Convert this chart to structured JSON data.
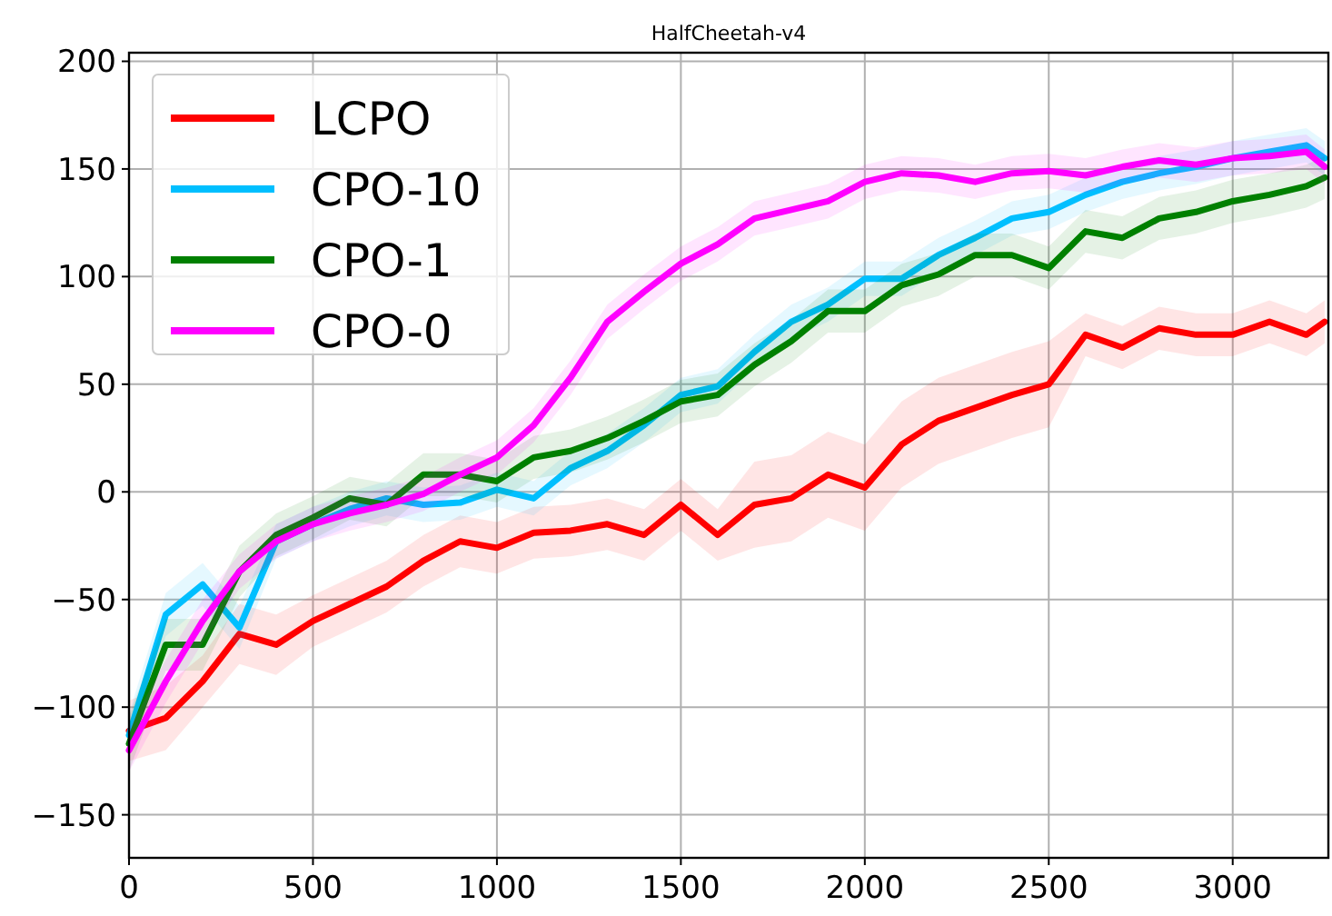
{
  "chart_data": {
    "type": "line",
    "title": "HalfCheetah-v4",
    "x": [
      0,
      100,
      200,
      300,
      400,
      500,
      600,
      700,
      800,
      900,
      1000,
      1100,
      1200,
      1300,
      1400,
      1500,
      1600,
      1700,
      1800,
      1900,
      2000,
      2100,
      2200,
      2300,
      2400,
      2500,
      2600,
      2700,
      2800,
      2900,
      3000,
      3100,
      3200,
      3250
    ],
    "xlim": [
      0,
      3260
    ],
    "xticks": [
      0,
      500,
      1000,
      1500,
      2000,
      2500,
      3000
    ],
    "ylim": [
      -170,
      204
    ],
    "yticks": [
      -150,
      -100,
      -50,
      0,
      50,
      100,
      150,
      200
    ],
    "grid": true,
    "legend": "top left",
    "line_style": "solid",
    "marker": "none",
    "series": [
      {
        "name": "LCPO",
        "color": "#ff0000",
        "values": [
          -111,
          -105,
          -88,
          -66,
          -71,
          -60,
          -52,
          -44,
          -32,
          -23,
          -26,
          -19,
          -18,
          -15,
          -20,
          -6,
          -20,
          -6,
          -3,
          8,
          2,
          22,
          33,
          39,
          45,
          50,
          73,
          67,
          76,
          73,
          73,
          79,
          73,
          79
        ],
        "lower": [
          -125,
          -120,
          -100,
          -80,
          -85,
          -72,
          -64,
          -56,
          -44,
          -35,
          -38,
          -31,
          -30,
          -27,
          -32,
          -18,
          -32,
          -26,
          -23,
          -12,
          -18,
          2,
          13,
          19,
          25,
          30,
          63,
          57,
          66,
          63,
          63,
          69,
          63,
          69
        ],
        "upper": [
          -97,
          -90,
          -76,
          -52,
          -57,
          -48,
          -40,
          -32,
          -20,
          -11,
          -14,
          -7,
          -6,
          -3,
          -8,
          6,
          -8,
          14,
          17,
          28,
          22,
          42,
          53,
          59,
          65,
          70,
          83,
          77,
          86,
          83,
          83,
          89,
          83,
          89
        ]
      },
      {
        "name": "CPO-10",
        "color": "#00bfff",
        "values": [
          -113,
          -57,
          -43,
          -63,
          -23,
          -15,
          -8,
          -3,
          -6,
          -5,
          1,
          -3,
          11,
          19,
          31,
          45,
          49,
          65,
          79,
          87,
          99,
          99,
          110,
          118,
          127,
          130,
          138,
          144,
          148,
          151,
          155,
          158,
          161,
          155
        ],
        "lower": [
          -123,
          -67,
          -53,
          -73,
          -31,
          -23,
          -16,
          -11,
          -14,
          -13,
          -7,
          -11,
          3,
          11,
          23,
          37,
          41,
          57,
          71,
          79,
          91,
          91,
          102,
          110,
          119,
          122,
          130,
          136,
          140,
          143,
          147,
          150,
          153,
          147
        ],
        "upper": [
          -103,
          -47,
          -33,
          -53,
          -15,
          -7,
          0,
          5,
          2,
          3,
          9,
          5,
          19,
          27,
          39,
          53,
          57,
          73,
          87,
          95,
          107,
          107,
          118,
          126,
          135,
          138,
          146,
          152,
          156,
          159,
          163,
          166,
          169,
          163
        ]
      },
      {
        "name": "CPO-1",
        "color": "#008000",
        "values": [
          -117,
          -71,
          -71,
          -37,
          -20,
          -12,
          -3,
          -6,
          8,
          8,
          5,
          16,
          19,
          25,
          33,
          42,
          45,
          59,
          70,
          84,
          84,
          96,
          101,
          110,
          110,
          104,
          121,
          118,
          127,
          130,
          135,
          138,
          142,
          146
        ],
        "lower": [
          -130,
          -83,
          -83,
          -49,
          -30,
          -22,
          -13,
          -16,
          -2,
          -2,
          -5,
          6,
          9,
          15,
          23,
          32,
          35,
          49,
          60,
          74,
          74,
          86,
          91,
          100,
          100,
          94,
          111,
          108,
          117,
          120,
          125,
          128,
          132,
          136
        ],
        "upper": [
          -104,
          -59,
          -59,
          -25,
          -10,
          -2,
          7,
          4,
          18,
          18,
          15,
          26,
          29,
          35,
          43,
          52,
          55,
          69,
          80,
          94,
          94,
          106,
          111,
          120,
          120,
          114,
          131,
          128,
          137,
          140,
          145,
          148,
          152,
          156
        ]
      },
      {
        "name": "CPO-0",
        "color": "#ff00ff",
        "values": [
          -120,
          -88,
          -60,
          -37,
          -23,
          -15,
          -10,
          -6,
          -1,
          8,
          16,
          31,
          53,
          79,
          93,
          106,
          115,
          127,
          131,
          135,
          144,
          148,
          147,
          144,
          148,
          149,
          147,
          151,
          154,
          152,
          155,
          156,
          158,
          151
        ],
        "lower": [
          -130,
          -98,
          -70,
          -45,
          -31,
          -23,
          -18,
          -14,
          -9,
          0,
          8,
          23,
          45,
          71,
          85,
          98,
          107,
          119,
          123,
          127,
          136,
          140,
          139,
          136,
          140,
          141,
          139,
          143,
          146,
          144,
          147,
          148,
          150,
          143
        ],
        "upper": [
          -110,
          -78,
          -50,
          -29,
          -15,
          -7,
          -2,
          2,
          7,
          16,
          24,
          39,
          61,
          87,
          101,
          114,
          123,
          135,
          139,
          143,
          152,
          156,
          155,
          152,
          156,
          157,
          155,
          159,
          162,
          160,
          163,
          164,
          166,
          159
        ]
      }
    ]
  }
}
